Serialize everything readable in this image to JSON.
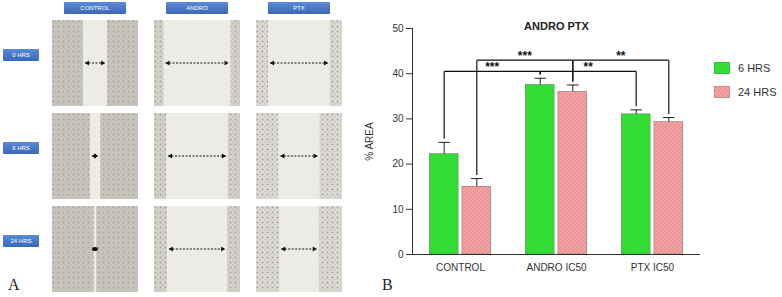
{
  "figure": {
    "panel_labels": [
      "A",
      "B"
    ],
    "images": {
      "columns": [
        "CONTROL",
        "ANDRO",
        "PTX"
      ],
      "rows": [
        "0 HRS",
        "6 HRS",
        "24 HRS"
      ]
    }
  },
  "chart_data": {
    "type": "bar",
    "title": "ANDRO PTX",
    "categories": [
      "CONTROL",
      "ANDRO IC50",
      "PTX IC50"
    ],
    "series": [
      {
        "name": "6 HRS",
        "color": "#33dd33",
        "values": [
          22.2,
          37.5,
          31.0
        ],
        "errors": [
          2.6,
          1.5,
          1.0
        ]
      },
      {
        "name": "24 HRS",
        "color": "#f4a3a3",
        "values": [
          15.0,
          36.0,
          29.3
        ],
        "errors": [
          1.8,
          1.5,
          1.0
        ]
      }
    ],
    "ylabel": "% AREA",
    "ylim": [
      0,
      50
    ],
    "yticks": [
      0,
      10,
      20,
      30,
      40,
      50
    ],
    "grid": false,
    "legend": "right",
    "annotations": [
      {
        "text": "***",
        "from": {
          "category": "CONTROL",
          "series": "6 HRS"
        },
        "to": {
          "category": "ANDRO IC50",
          "series": "6 HRS"
        }
      },
      {
        "text": "***",
        "from": {
          "category": "CONTROL",
          "series": "24 HRS"
        },
        "to": {
          "category": "ANDRO IC50",
          "series": "24 HRS"
        }
      },
      {
        "text": "**",
        "from": {
          "category": "ANDRO IC50",
          "series": "6 HRS"
        },
        "to": {
          "category": "PTX IC50",
          "series": "6 HRS"
        }
      },
      {
        "text": "**",
        "from": {
          "category": "ANDRO IC50",
          "series": "24 HRS"
        },
        "to": {
          "category": "PTX IC50",
          "series": "24 HRS"
        }
      }
    ]
  }
}
